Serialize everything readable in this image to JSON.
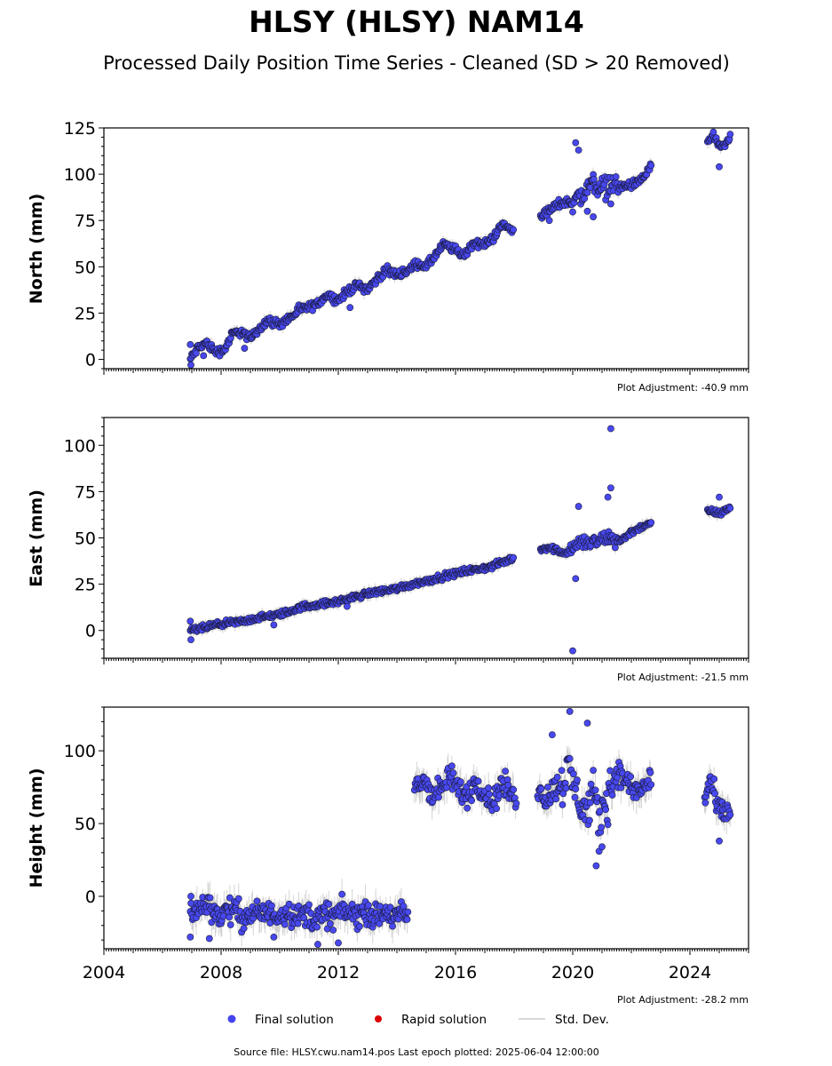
{
  "title": "HLSY (HLSY) NAM14",
  "subtitle": "Processed Daily Position Time Series - Cleaned (SD > 20 Removed)",
  "source": "Source file: HLSY.cwu.nam14.pos  Last epoch plotted: 2025-06-04 12:00:00",
  "legend": {
    "final": "Final solution",
    "rapid": "Rapid solution",
    "std": "Std. Dev.",
    "final_color": "#4444ee",
    "rapid_color": "#dd0000",
    "std_color": "#cccccc"
  },
  "colors": {
    "marker_fill": "#4848f0",
    "marker_edge": "#1a1a3a",
    "errorbar": "#b0b0b0"
  },
  "chart_data": [
    {
      "type": "scatter",
      "name": "north",
      "ylabel": "North (mm)",
      "adjustment": "Plot Adjustment: -40.9 mm",
      "xlim": [
        2004.0,
        2026.0
      ],
      "ylim": [
        -5,
        125
      ],
      "yticks": [
        0,
        25,
        50,
        75,
        100,
        125
      ],
      "segments": [
        {
          "x": [
            2006.95,
            2007.2,
            2007.5,
            2007.8,
            2008.1,
            2008.4,
            2008.7,
            2009.0,
            2009.3,
            2009.6,
            2010.0,
            2010.4,
            2010.7,
            2011.0,
            2011.3,
            2011.6,
            2012.0,
            2012.4,
            2012.7,
            2013.0,
            2013.3,
            2013.6,
            2014.0,
            2014.4,
            2014.7,
            2015.0,
            2015.3,
            2015.6,
            2016.0,
            2016.3,
            2016.6,
            2017.0,
            2017.3,
            2017.6,
            2018.0
          ],
          "y": [
            0,
            6,
            9,
            4,
            5,
            14,
            15,
            11,
            17,
            21,
            19,
            23,
            27,
            28,
            30,
            35,
            32,
            38,
            40,
            38,
            43,
            48,
            46,
            48,
            52,
            50,
            56,
            62,
            59,
            56,
            63,
            62,
            66,
            73,
            69
          ]
        },
        {
          "x": [
            2018.9,
            2019.2,
            2019.5,
            2019.8,
            2020.1,
            2020.4,
            2020.7,
            2021.0,
            2021.3,
            2021.6,
            2021.9,
            2022.2,
            2022.5,
            2022.7
          ],
          "y": [
            78,
            80,
            84,
            85,
            86,
            90,
            96,
            92,
            95,
            93,
            94,
            95,
            100,
            105
          ]
        },
        {
          "x": [
            2024.6,
            2024.8,
            2025.0,
            2025.2,
            2025.4
          ],
          "y": [
            118,
            121,
            114,
            115,
            122
          ]
        }
      ],
      "outliers": [
        [
          2006.95,
          8
        ],
        [
          2006.97,
          -3
        ],
        [
          2007.4,
          2
        ],
        [
          2008.8,
          6
        ],
        [
          2012.4,
          28
        ],
        [
          2020.1,
          117
        ],
        [
          2020.2,
          113
        ],
        [
          2020.5,
          80
        ],
        [
          2020.7,
          77
        ],
        [
          2021.3,
          84
        ],
        [
          2019.2,
          75
        ],
        [
          2025.0,
          104
        ]
      ]
    },
    {
      "type": "scatter",
      "name": "east",
      "ylabel": "East (mm)",
      "adjustment": "Plot Adjustment: -21.5 mm",
      "xlim": [
        2004.0,
        2026.0
      ],
      "ylim": [
        -15,
        115
      ],
      "yticks": [
        0,
        25,
        50,
        75,
        100
      ],
      "segments": [
        {
          "x": [
            2006.95,
            2007.3,
            2007.8,
            2008.3,
            2008.8,
            2009.3,
            2009.8,
            2010.3,
            2010.8,
            2011.3,
            2011.8,
            2012.3,
            2012.8,
            2013.3,
            2013.8,
            2014.3,
            2014.8,
            2015.3,
            2015.8,
            2016.3,
            2016.8,
            2017.3,
            2017.8,
            2018.0
          ],
          "y": [
            0,
            1,
            3,
            4,
            5,
            7,
            8,
            10,
            13,
            14,
            15,
            17,
            19,
            21,
            22,
            24,
            26,
            28,
            30,
            32,
            33,
            35,
            38,
            39
          ]
        },
        {
          "x": [
            2018.9,
            2019.2,
            2019.5,
            2019.8,
            2020.1,
            2020.4,
            2020.7,
            2021.0,
            2021.3,
            2021.6,
            2021.9,
            2022.2,
            2022.5,
            2022.7
          ],
          "y": [
            44,
            45,
            43,
            42,
            46,
            48,
            47,
            49,
            50,
            48,
            52,
            55,
            57,
            57
          ]
        },
        {
          "x": [
            2024.6,
            2024.8,
            2025.0,
            2025.2,
            2025.4
          ],
          "y": [
            65,
            64,
            63,
            65,
            66
          ]
        }
      ],
      "outliers": [
        [
          2006.95,
          5
        ],
        [
          2006.97,
          -5
        ],
        [
          2009.8,
          3
        ],
        [
          2012.3,
          13
        ],
        [
          2020.0,
          -11
        ],
        [
          2020.1,
          28
        ],
        [
          2020.2,
          67
        ],
        [
          2021.3,
          109
        ],
        [
          2021.3,
          77
        ],
        [
          2021.2,
          72
        ],
        [
          2025.0,
          72
        ]
      ]
    },
    {
      "type": "scatter",
      "name": "height",
      "ylabel": "Height (mm)",
      "adjustment": "Plot Adjustment: -28.2 mm",
      "xlim": [
        2004.0,
        2026.0
      ],
      "ylim": [
        -36,
        130
      ],
      "yticks": [
        0,
        50,
        100
      ],
      "xticks": [
        2004,
        2008,
        2012,
        2016,
        2020,
        2024
      ],
      "segments": [
        {
          "x": [
            2006.95,
            2007.3,
            2007.6,
            2007.9,
            2008.2,
            2008.5,
            2008.8,
            2009.1,
            2009.4,
            2009.7,
            2010.0,
            2010.3,
            2010.6,
            2010.9,
            2011.2,
            2011.5,
            2011.8,
            2012.1,
            2012.4,
            2012.7,
            2013.0,
            2013.3,
            2013.6,
            2013.9,
            2014.2,
            2014.4
          ],
          "y": [
            -10,
            -8,
            -5,
            -14,
            -9,
            -10,
            -15,
            -12,
            -11,
            -13,
            -12,
            -10,
            -15,
            -11,
            -17,
            -12,
            -14,
            -10,
            -12,
            -13,
            -10,
            -15,
            -11,
            -14,
            -12,
            -15
          ]
        },
        {
          "x": [
            2014.6,
            2014.9,
            2015.2,
            2015.5,
            2015.8,
            2016.1,
            2016.4,
            2016.7,
            2017.0,
            2017.3,
            2017.6,
            2017.9,
            2018.1
          ],
          "y": [
            75,
            80,
            70,
            73,
            82,
            74,
            68,
            80,
            70,
            64,
            78,
            70,
            68
          ]
        },
        {
          "x": [
            2018.8,
            2019.1,
            2019.4,
            2019.7,
            2019.9,
            2020.1,
            2020.3,
            2020.5,
            2020.7,
            2020.9,
            2021.1,
            2021.3,
            2021.5,
            2021.8,
            2022.1,
            2022.4,
            2022.7
          ],
          "y": [
            72,
            68,
            74,
            80,
            86,
            72,
            64,
            58,
            70,
            52,
            66,
            74,
            86,
            80,
            72,
            74,
            82
          ]
        },
        {
          "x": [
            2024.5,
            2024.7,
            2024.9,
            2025.1,
            2025.3,
            2025.4
          ],
          "y": [
            68,
            80,
            62,
            56,
            58,
            60
          ]
        }
      ],
      "outliers": [
        [
          2006.95,
          -28
        ],
        [
          2006.97,
          0
        ],
        [
          2007.6,
          -29
        ],
        [
          2009.8,
          -28
        ],
        [
          2011.3,
          -33
        ],
        [
          2012.0,
          -32
        ],
        [
          2019.9,
          127
        ],
        [
          2019.3,
          111
        ],
        [
          2020.8,
          21
        ],
        [
          2020.9,
          31
        ],
        [
          2021.0,
          34
        ],
        [
          2025.0,
          38
        ],
        [
          2020.5,
          119
        ]
      ]
    }
  ]
}
